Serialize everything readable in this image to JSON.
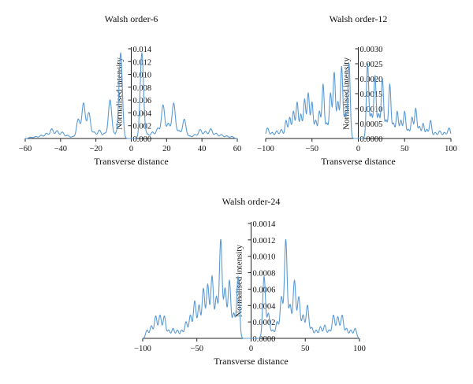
{
  "figure": {
    "colors": {
      "series": "#5b9bd5",
      "axis": "#222222",
      "text": "#111111"
    }
  },
  "chart_data": [
    {
      "type": "line",
      "title": "Walsh order-6",
      "xlabel": "Transverse distance",
      "ylabel": "Normalised intensity",
      "xlim": [
        -60,
        60
      ],
      "ylim": [
        0,
        0.014
      ],
      "xticks": [
        "−60",
        "−40",
        "−20",
        "0",
        "20",
        "40",
        "60"
      ],
      "yticks": [
        "0.000",
        "0.002",
        "0.004",
        "0.006",
        "0.008",
        "0.010",
        "0.012",
        "0.014"
      ],
      "grid": false,
      "peaks": {
        "x": [
          -57,
          -54,
          -51,
          -48,
          -45,
          -42,
          -39,
          -36,
          -33,
          -30,
          -27,
          -24,
          -21,
          -18,
          -15,
          -12,
          -9,
          -6,
          6,
          9,
          12,
          15,
          18,
          21,
          24,
          27,
          30,
          33,
          36,
          39,
          42,
          45,
          48,
          51,
          54,
          57
        ],
        "y": [
          0.0002,
          0.0003,
          0.0005,
          0.0008,
          0.0015,
          0.0012,
          0.001,
          0.0005,
          0.0003,
          0.003,
          0.0055,
          0.004,
          0.001,
          0.0013,
          0.0008,
          0.006,
          0.0007,
          0.0133,
          0.0133,
          0.0007,
          0.001,
          0.0016,
          0.0052,
          0.0023,
          0.0055,
          0.0012,
          0.003,
          0.0004,
          0.0006,
          0.0014,
          0.0011,
          0.0015,
          0.0008,
          0.0006,
          0.0004,
          0.0003
        ]
      }
    },
    {
      "type": "line",
      "title": "Walsh order-12",
      "xlabel": "Transverse distance",
      "ylabel": "Normalised intensity",
      "xlim": [
        -100,
        100
      ],
      "ylim": [
        0,
        0.003
      ],
      "xticks": [
        "−100",
        "−50",
        "0",
        "50",
        "100"
      ],
      "yticks": [
        "0.0000",
        "0.0005",
        "0.0010",
        "0.0015",
        "0.0020",
        "0.0025",
        "0.0030"
      ],
      "grid": false,
      "peaks": {
        "x": [
          -98,
          -93,
          -88,
          -83,
          -78,
          -74,
          -70,
          -66,
          -62,
          -58,
          -54,
          -50,
          -46,
          -42,
          -38,
          -34,
          -30,
          -26,
          -22,
          -18,
          -14,
          -10,
          10,
          14,
          18,
          22,
          26,
          30,
          34,
          38,
          42,
          46,
          50,
          54,
          58,
          62,
          66,
          70,
          74,
          78,
          83,
          88,
          93,
          98
        ],
        "y": [
          0.00035,
          0.0002,
          0.00025,
          0.0003,
          0.0006,
          0.0007,
          0.0009,
          0.0012,
          0.0008,
          0.0013,
          0.0015,
          0.0012,
          0.0006,
          0.0009,
          0.0018,
          0.0005,
          0.0015,
          0.0022,
          0.0012,
          0.0024,
          0.0008,
          0.0025,
          0.0025,
          0.0008,
          0.0021,
          0.0008,
          0.002,
          0.0006,
          0.0018,
          0.0005,
          0.0009,
          0.0006,
          0.0009,
          0.0003,
          0.0007,
          0.001,
          0.0004,
          0.0005,
          0.0003,
          0.0006,
          0.0002,
          0.00025,
          0.0002,
          0.00035
        ]
      }
    },
    {
      "type": "line",
      "title": "Walsh order-24",
      "xlabel": "Transverse distance",
      "ylabel": "Normalised intensity",
      "xlim": [
        -100,
        100
      ],
      "ylim": [
        0,
        0.0014
      ],
      "xticks": [
        "−100",
        "−50",
        "0",
        "50",
        "100"
      ],
      "yticks": [
        "0.0000",
        "0.0002",
        "0.0004",
        "0.0006",
        "0.0008",
        "0.0010",
        "0.0012",
        "0.0014"
      ],
      "grid": false,
      "peaks": {
        "x": [
          -96,
          -92,
          -88,
          -84,
          -80,
          -76,
          -72,
          -68,
          -64,
          -60,
          -56,
          -52,
          -48,
          -44,
          -40,
          -36,
          -32,
          -28,
          -24,
          -20,
          -16,
          -12,
          12,
          16,
          20,
          24,
          28,
          32,
          36,
          40,
          44,
          48,
          52,
          56,
          60,
          64,
          68,
          72,
          76,
          80,
          84,
          88,
          92,
          96
        ],
        "y": [
          0.0001,
          0.00015,
          0.00027,
          0.00028,
          0.00027,
          0.0001,
          0.00012,
          0.0001,
          0.0001,
          0.0002,
          0.00028,
          0.00045,
          0.0004,
          0.0006,
          0.00065,
          0.00075,
          0.0005,
          0.0012,
          0.0006,
          0.0007,
          0.0003,
          0.00075,
          0.00075,
          0.0003,
          0.0001,
          0.0002,
          0.0005,
          0.0012,
          0.0004,
          0.0007,
          0.0005,
          0.00028,
          0.0004,
          0.00013,
          0.0001,
          0.00014,
          0.00016,
          0.0001,
          0.00028,
          0.00026,
          0.00028,
          0.00012,
          0.0001,
          0.00012
        ]
      }
    }
  ]
}
